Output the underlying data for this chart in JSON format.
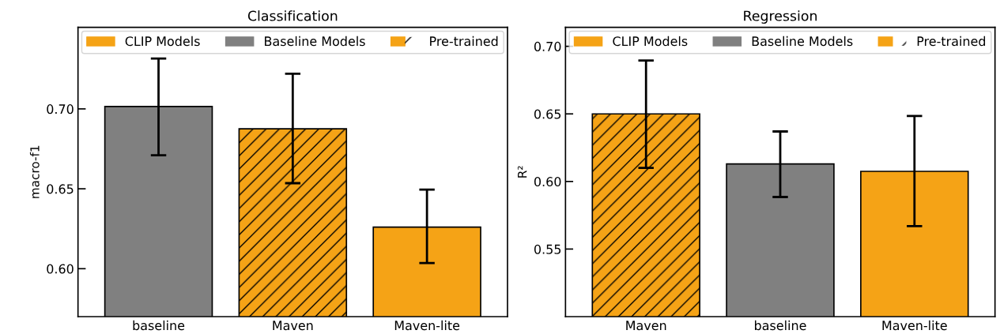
{
  "chart_data": [
    {
      "type": "bar",
      "title": "Classification",
      "ylabel": "macro-f1",
      "categories": [
        "baseline",
        "Maven",
        "Maven-lite"
      ],
      "ylim": [
        0.57,
        0.751
      ],
      "yticks": [
        {
          "value": 0.6,
          "label": "0.60"
        },
        {
          "value": 0.65,
          "label": "0.65"
        },
        {
          "value": 0.7,
          "label": "0.70"
        }
      ],
      "legend": "top",
      "grid": false,
      "series": [
        {
          "name": "CLIP Models",
          "color": "#f5a316",
          "values": [
            null,
            null,
            0.626
          ],
          "errors": [
            null,
            null,
            [
              0.6035,
              0.6495
            ]
          ]
        },
        {
          "name": "Baseline Models",
          "color": "#808080",
          "values": [
            0.7015,
            null,
            null
          ],
          "errors": [
            [
              0.671,
              0.7315
            ],
            null,
            null
          ]
        },
        {
          "name": "Pre-trained",
          "color": "#f5a316",
          "values": [
            null,
            0.6875,
            null
          ],
          "errors": [
            null,
            [
              0.6535,
              0.722
            ],
            null
          ]
        }
      ]
    },
    {
      "type": "bar",
      "title": "Regression",
      "ylabel": "R²",
      "categories": [
        "Maven",
        "baseline",
        "Maven-lite"
      ],
      "ylim": [
        0.5,
        0.714
      ],
      "yticks": [
        {
          "value": 0.55,
          "label": "0.55"
        },
        {
          "value": 0.6,
          "label": "0.60"
        },
        {
          "value": 0.65,
          "label": "0.65"
        },
        {
          "value": 0.7,
          "label": "0.70"
        }
      ],
      "legend": "top",
      "grid": false,
      "series": [
        {
          "name": "CLIP Models",
          "color": "#f5a316",
          "values": [
            null,
            null,
            0.6075
          ],
          "errors": [
            null,
            null,
            [
              0.567,
              0.6485
            ]
          ]
        },
        {
          "name": "Baseline Models",
          "color": "#808080",
          "values": [
            null,
            0.613,
            null
          ],
          "errors": [
            null,
            [
              0.5885,
              0.637
            ],
            null
          ]
        },
        {
          "name": "Pre-trained",
          "color": "#f5a316",
          "values": [
            0.65,
            null,
            null
          ],
          "errors": [
            [
              0.61,
              0.6895
            ],
            null,
            null
          ]
        }
      ]
    }
  ]
}
